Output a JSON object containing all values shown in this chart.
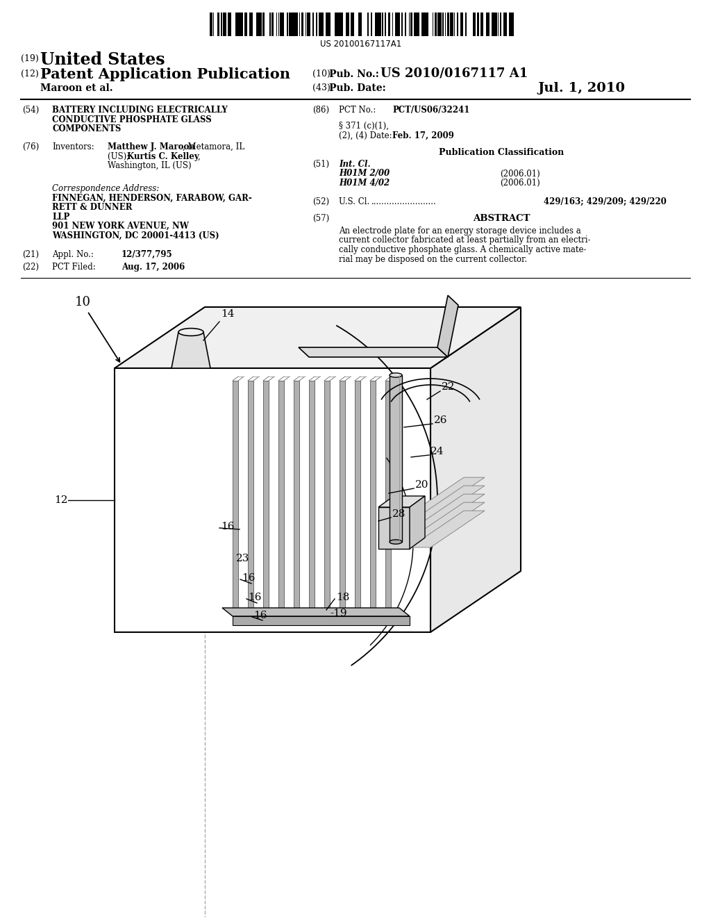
{
  "background_color": "#ffffff",
  "barcode_text": "US 20100167117A1",
  "header": {
    "number_19": "(19)",
    "united_states": "United States",
    "number_12": "(12)",
    "patent_app_pub": "Patent Application Publication",
    "number_10": "(10)",
    "pub_no_label": "Pub. No.:",
    "pub_no_value": "US 2010/0167117 A1",
    "inventor_line": "Maroon et al.",
    "number_43": "(43)",
    "pub_date_label": "Pub. Date:",
    "pub_date_value": "Jul. 1, 2010"
  },
  "left_column": {
    "field_54_num": "(54)",
    "field_54_title_lines": [
      "BATTERY INCLUDING ELECTRICALLY",
      "CONDUCTIVE PHOSPHATE GLASS",
      "COMPONENTS"
    ],
    "field_76_num": "(76)",
    "field_76_label": "Inventors:",
    "field_76_name1": "Matthew J. Maroon",
    "field_76_rest1": ", Metamora, IL",
    "field_76_line2a": "(US); ",
    "field_76_name2": "Kurtis C. Kelley",
    "field_76_line2b": ",",
    "field_76_line3": "Washington, IL (US)",
    "correspondence_label": "Correspondence Address:",
    "correspondence_lines": [
      "FINNEGAN, HENDERSON, FARABOW, GAR-",
      "RETT & DUNNER",
      "LLP",
      "901 NEW YORK AVENUE, NW",
      "WASHINGTON, DC 20001-4413 (US)"
    ],
    "field_21_num": "(21)",
    "field_21_label": "Appl. No.:",
    "field_21_value": "12/377,795",
    "field_22_num": "(22)",
    "field_22_label": "PCT Filed:",
    "field_22_value": "Aug. 17, 2006"
  },
  "right_column": {
    "field_86_num": "(86)",
    "field_86_label": "PCT No.:",
    "field_86_value": "PCT/US06/32241",
    "field_86b_line1": "§ 371 (c)(1),",
    "field_86b_line2": "(2), (4) Date:",
    "field_86b_value": "Feb. 17, 2009",
    "pub_class_label": "Publication Classification",
    "field_51_num": "(51)",
    "field_51_label": "Int. Cl.",
    "field_51_class1": "H01M 2/00",
    "field_51_year1": "(2006.01)",
    "field_51_class2": "H01M 4/02",
    "field_51_year2": "(2006.01)",
    "field_52_num": "(52)",
    "field_52_label": "U.S. Cl.",
    "field_52_dots": ".........................",
    "field_52_value": "429/163; 429/209; 429/220",
    "field_57_num": "(57)",
    "abstract_label": "ABSTRACT",
    "abstract_lines": [
      "An electrode plate for an energy storage device includes a",
      "current collector fabricated at least partially from an electri-",
      "cally conductive phosphate glass. A chemically active mate-",
      "rial may be disposed on the current collector."
    ]
  }
}
